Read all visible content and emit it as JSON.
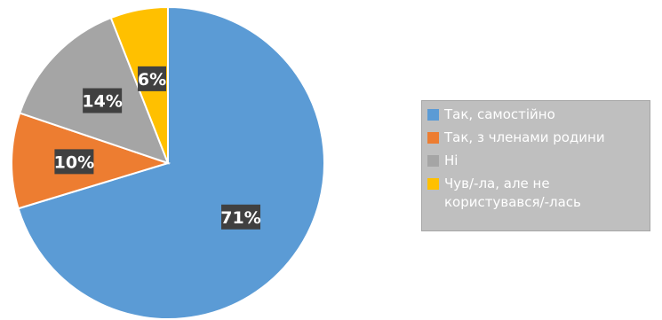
{
  "chart_data": {
    "type": "pie",
    "categories": [
      "Так, самостійно",
      "Так, з членами родини",
      "Ні",
      "Чув/-ла, але не користувався/-лась"
    ],
    "values": [
      71,
      10,
      14,
      6
    ],
    "data_labels": [
      "71%",
      "10%",
      "14%",
      "6%"
    ],
    "colors": [
      "#5b9bd5",
      "#ed7d31",
      "#a5a5a5",
      "#ffc000"
    ],
    "start_angle": "12 o'clock",
    "direction": "clockwise",
    "legend_position": "right"
  },
  "legend": {
    "items": [
      {
        "label": "Так, самостійно",
        "color": "#5b9bd5"
      },
      {
        "label": "Так, з членами родини",
        "color": "#ed7d31"
      },
      {
        "label": "Ні",
        "color": "#a5a5a5"
      },
      {
        "label": "Чув/-ла, але не користувався/-лась",
        "color": "#ffc000"
      }
    ]
  }
}
